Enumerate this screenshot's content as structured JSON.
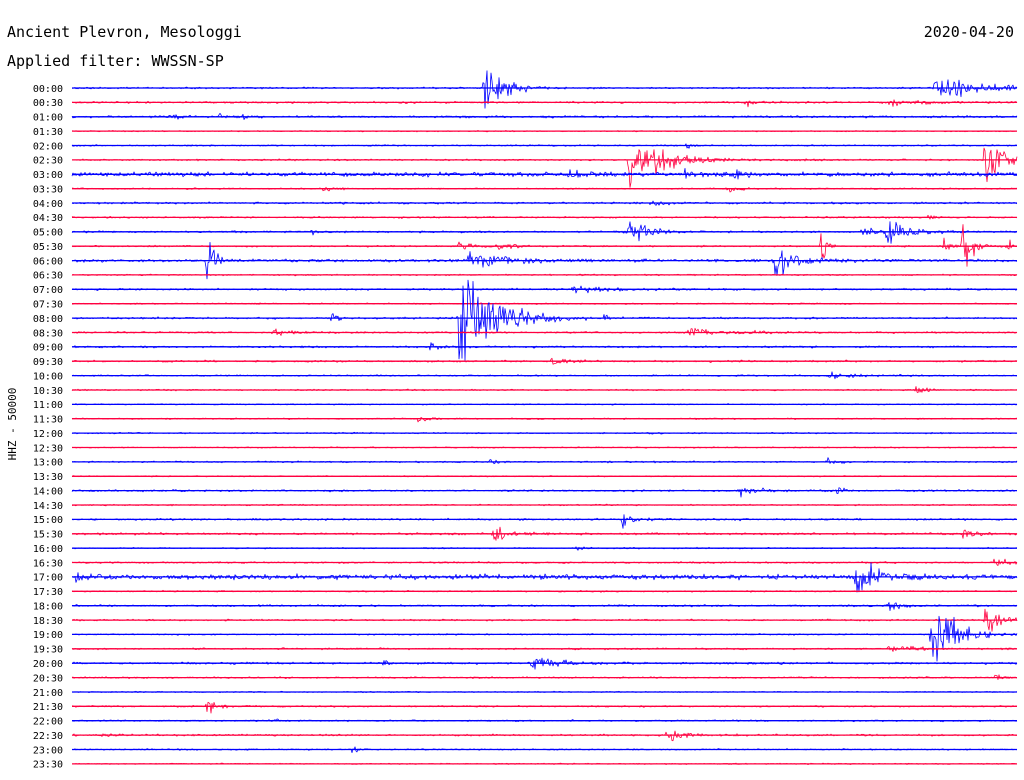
{
  "station": "Ancient Plevron, Mesologgi",
  "date": "2020-04-20",
  "filter_label": "Applied filter: WWSSN-SP",
  "channel_label": "HHZ - 50000",
  "colors": {
    "odd": "#0000ff",
    "even": "#ff0040",
    "text": "#000000",
    "background": "#ffffff"
  },
  "chart_data": {
    "type": "line",
    "title": "Ancient Plevron, Mesologgi",
    "subtitle": "Applied filter: WWSSN-SP",
    "xlabel": "",
    "ylabel": "HHZ - 50000",
    "grid": false,
    "row_minutes": 30,
    "rows": [
      "00:00",
      "00:30",
      "01:00",
      "01:30",
      "02:00",
      "02:30",
      "03:00",
      "03:30",
      "04:00",
      "04:30",
      "05:00",
      "05:30",
      "06:00",
      "06:30",
      "07:00",
      "07:30",
      "08:00",
      "08:30",
      "09:00",
      "09:30",
      "10:00",
      "10:30",
      "11:00",
      "11:30",
      "12:00",
      "12:30",
      "13:00",
      "13:30",
      "14:00",
      "14:30",
      "15:00",
      "15:30",
      "16:00",
      "16:30",
      "17:00",
      "17:30",
      "18:00",
      "18:30",
      "19:00",
      "19:30",
      "20:00",
      "20:30",
      "21:00",
      "21:30",
      "22:00",
      "22:30",
      "23:00",
      "23:30"
    ],
    "noise": [
      0.07,
      0.08,
      0.09,
      0.05,
      0.06,
      0.07,
      0.18,
      0.06,
      0.08,
      0.07,
      0.08,
      0.07,
      0.12,
      0.06,
      0.08,
      0.06,
      0.08,
      0.07,
      0.08,
      0.08,
      0.06,
      0.06,
      0.05,
      0.06,
      0.06,
      0.05,
      0.07,
      0.05,
      0.08,
      0.06,
      0.08,
      0.09,
      0.06,
      0.07,
      0.2,
      0.06,
      0.08,
      0.07,
      0.06,
      0.07,
      0.09,
      0.07,
      0.05,
      0.07,
      0.07,
      0.08,
      0.06,
      0.05
    ],
    "events": [
      {
        "row": 0,
        "minute": 13.1,
        "amplitude": 1.9,
        "duration": 1.6
      },
      {
        "row": 0,
        "minute": 27.4,
        "amplitude": 1.25,
        "duration": 3.2
      },
      {
        "row": 1,
        "minute": 21.4,
        "amplitude": 0.35,
        "duration": 0.8
      },
      {
        "row": 1,
        "minute": 25.9,
        "amplitude": 0.3,
        "duration": 2.4
      },
      {
        "row": 2,
        "minute": 3.1,
        "amplitude": 0.35,
        "duration": 0.6
      },
      {
        "row": 2,
        "minute": 4.7,
        "amplitude": 0.3,
        "duration": 0.4
      },
      {
        "row": 2,
        "minute": 5.4,
        "amplitude": 0.3,
        "duration": 0.3
      },
      {
        "row": 4,
        "minute": 19.5,
        "amplitude": 0.2,
        "duration": 0.6
      },
      {
        "row": 5,
        "minute": 17.7,
        "amplitude": 2.2,
        "duration": 2.6
      },
      {
        "row": 5,
        "minute": 18.9,
        "amplitude": 0.3,
        "duration": 0.6
      },
      {
        "row": 5,
        "minute": 29.0,
        "amplitude": 2.2,
        "duration": 1.6
      },
      {
        "row": 6,
        "minute": 15.8,
        "amplitude": 0.3,
        "duration": 0.8
      },
      {
        "row": 6,
        "minute": 19.4,
        "amplitude": 0.3,
        "duration": 1.0
      },
      {
        "row": 6,
        "minute": 21.0,
        "amplitude": 0.5,
        "duration": 0.6
      },
      {
        "row": 7,
        "minute": 8.0,
        "amplitude": 0.3,
        "duration": 0.7
      },
      {
        "row": 7,
        "minute": 20.8,
        "amplitude": 0.3,
        "duration": 0.8
      },
      {
        "row": 8,
        "minute": 18.4,
        "amplitude": 0.3,
        "duration": 1.5
      },
      {
        "row": 9,
        "minute": 27.1,
        "amplitude": 0.3,
        "duration": 0.5
      },
      {
        "row": 10,
        "minute": 7.6,
        "amplitude": 0.4,
        "duration": 0.2
      },
      {
        "row": 10,
        "minute": 17.6,
        "amplitude": 1.2,
        "duration": 1.4
      },
      {
        "row": 10,
        "minute": 25.1,
        "amplitude": 0.3,
        "duration": 1.5
      },
      {
        "row": 10,
        "minute": 25.9,
        "amplitude": 1.1,
        "duration": 1.4
      },
      {
        "row": 11,
        "minute": 12.3,
        "amplitude": 0.4,
        "duration": 0.8
      },
      {
        "row": 11,
        "minute": 13.5,
        "amplitude": 0.3,
        "duration": 1.2
      },
      {
        "row": 11,
        "minute": 23.8,
        "amplitude": 1.9,
        "duration": 0.3
      },
      {
        "row": 11,
        "minute": 27.7,
        "amplitude": 1.3,
        "duration": 0.4
      },
      {
        "row": 11,
        "minute": 28.3,
        "amplitude": 3.2,
        "duration": 0.5
      },
      {
        "row": 11,
        "minute": 29.7,
        "amplitude": 1.5,
        "duration": 0.2
      },
      {
        "row": 12,
        "minute": 4.3,
        "amplitude": 2.1,
        "duration": 0.5
      },
      {
        "row": 12,
        "minute": 12.6,
        "amplitude": 1.0,
        "duration": 2.5
      },
      {
        "row": 12,
        "minute": 22.3,
        "amplitude": 1.5,
        "duration": 1.4
      },
      {
        "row": 14,
        "minute": 15.9,
        "amplitude": 0.3,
        "duration": 2.4
      },
      {
        "row": 16,
        "minute": 8.2,
        "amplitude": 0.6,
        "duration": 0.5
      },
      {
        "row": 16,
        "minute": 12.3,
        "amplitude": 4.5,
        "duration": 2.6
      },
      {
        "row": 16,
        "minute": 16.9,
        "amplitude": 0.4,
        "duration": 0.4
      },
      {
        "row": 17,
        "minute": 6.4,
        "amplitude": 0.3,
        "duration": 1.2
      },
      {
        "row": 17,
        "minute": 19.5,
        "amplitude": 0.3,
        "duration": 4.0
      },
      {
        "row": 18,
        "minute": 11.4,
        "amplitude": 0.3,
        "duration": 0.5
      },
      {
        "row": 19,
        "minute": 15.2,
        "amplitude": 0.4,
        "duration": 1.0
      },
      {
        "row": 20,
        "minute": 24.0,
        "amplitude": 0.3,
        "duration": 1.8
      },
      {
        "row": 21,
        "minute": 26.8,
        "amplitude": 0.5,
        "duration": 0.6
      },
      {
        "row": 23,
        "minute": 11.0,
        "amplitude": 0.3,
        "duration": 0.6
      },
      {
        "row": 26,
        "minute": 13.3,
        "amplitude": 0.3,
        "duration": 0.6
      },
      {
        "row": 26,
        "minute": 24.0,
        "amplitude": 0.3,
        "duration": 0.8
      },
      {
        "row": 28,
        "minute": 21.2,
        "amplitude": 0.4,
        "duration": 1.3
      },
      {
        "row": 28,
        "minute": 24.3,
        "amplitude": 0.3,
        "duration": 0.6
      },
      {
        "row": 30,
        "minute": 17.5,
        "amplitude": 0.6,
        "duration": 0.8
      },
      {
        "row": 31,
        "minute": 13.4,
        "amplitude": 0.8,
        "duration": 1.1
      },
      {
        "row": 31,
        "minute": 28.3,
        "amplitude": 0.7,
        "duration": 0.7
      },
      {
        "row": 32,
        "minute": 16.0,
        "amplitude": 0.3,
        "duration": 0.4
      },
      {
        "row": 33,
        "minute": 29.3,
        "amplitude": 0.4,
        "duration": 0.9
      },
      {
        "row": 34,
        "minute": 0.1,
        "amplitude": 0.4,
        "duration": 0.6
      },
      {
        "row": 34,
        "minute": 24.9,
        "amplitude": 1.6,
        "duration": 1.5
      },
      {
        "row": 36,
        "minute": 25.9,
        "amplitude": 0.6,
        "duration": 0.8
      },
      {
        "row": 37,
        "minute": 29.0,
        "amplitude": 1.3,
        "duration": 1.2
      },
      {
        "row": 38,
        "minute": 27.3,
        "amplitude": 2.8,
        "duration": 2.0
      },
      {
        "row": 39,
        "minute": 25.9,
        "amplitude": 0.3,
        "duration": 2.0
      },
      {
        "row": 40,
        "minute": 9.9,
        "amplitude": 0.3,
        "duration": 0.4
      },
      {
        "row": 40,
        "minute": 14.6,
        "amplitude": 0.6,
        "duration": 2.0
      },
      {
        "row": 41,
        "minute": 29.3,
        "amplitude": 0.3,
        "duration": 0.5
      },
      {
        "row": 43,
        "minute": 4.3,
        "amplitude": 0.6,
        "duration": 1.0
      },
      {
        "row": 44,
        "minute": 6.3,
        "amplitude": 0.3,
        "duration": 0.6
      },
      {
        "row": 45,
        "minute": 1.0,
        "amplitude": 0.2,
        "duration": 1.0
      },
      {
        "row": 45,
        "minute": 18.9,
        "amplitude": 0.8,
        "duration": 1.2
      },
      {
        "row": 46,
        "minute": 8.9,
        "amplitude": 0.2,
        "duration": 0.8
      }
    ]
  }
}
